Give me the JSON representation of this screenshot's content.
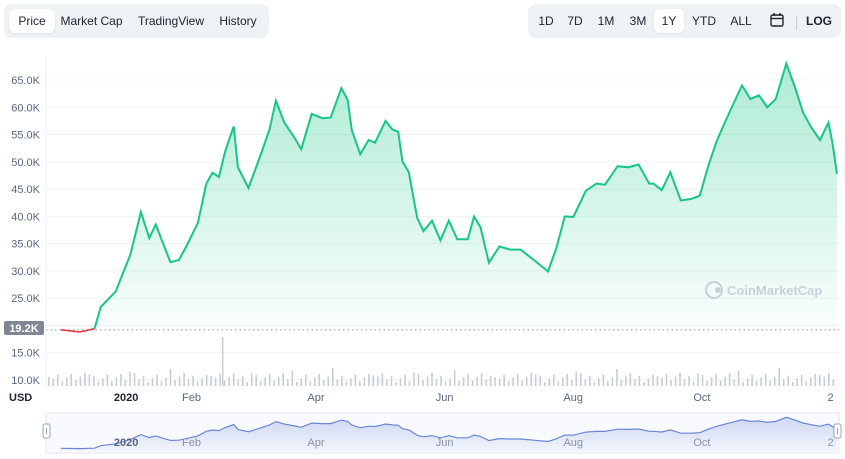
{
  "tabs": {
    "items": [
      {
        "label": "Price",
        "active": true
      },
      {
        "label": "Market Cap",
        "active": false
      },
      {
        "label": "TradingView",
        "active": false
      },
      {
        "label": "History",
        "active": false
      }
    ]
  },
  "ranges": {
    "items": [
      "1D",
      "7D",
      "1M",
      "3M",
      "1Y",
      "YTD",
      "ALL"
    ],
    "active": "1Y",
    "calendar_icon": "calendar-icon",
    "log_label": "LOG"
  },
  "colors": {
    "line": "#16c784",
    "line_down": "#ea3943",
    "fill_top": "#16c784",
    "grid": "#eff2f5",
    "volume": "#c8cdd3",
    "axis_text": "#58667e",
    "nav_line": "#6b86d9",
    "current_price_bg": "#7f8694"
  },
  "watermark": "CoinMarketCap",
  "currency_label": "USD",
  "current_price_label": "19.2K",
  "chart_data": {
    "type": "area",
    "y_ticks": [
      "10.0K",
      "15.0K",
      "20.0K",
      "25.0K",
      "30.0K",
      "35.0K",
      "40.0K",
      "45.0K",
      "50.0K",
      "55.0K",
      "60.0K",
      "65.0K"
    ],
    "x_ticks": [
      "2020",
      "Feb",
      "Apr",
      "Jun",
      "Aug",
      "Oct",
      "2"
    ],
    "ylim": [
      10000,
      68000
    ],
    "baseline": 19200,
    "x": [
      "2020-12-01",
      "2020-12-10",
      "2020-12-17",
      "2020-12-20",
      "2020-12-27",
      "2021-01-03",
      "2021-01-08",
      "2021-01-12",
      "2021-01-15",
      "2021-01-22",
      "2021-01-26",
      "2021-01-29",
      "2021-02-04",
      "2021-02-08",
      "2021-02-11",
      "2021-02-14",
      "2021-02-17",
      "2021-02-21",
      "2021-02-23",
      "2021-02-28",
      "2021-03-06",
      "2021-03-10",
      "2021-03-13",
      "2021-03-17",
      "2021-03-22",
      "2021-03-25",
      "2021-03-30",
      "2021-04-04",
      "2021-04-08",
      "2021-04-13",
      "2021-04-16",
      "2021-04-18",
      "2021-04-22",
      "2021-04-26",
      "2021-04-29",
      "2021-05-04",
      "2021-05-07",
      "2021-05-10",
      "2021-05-12",
      "2021-05-15",
      "2021-05-19",
      "2021-05-22",
      "2021-05-26",
      "2021-05-30",
      "2021-06-03",
      "2021-06-07",
      "2021-06-12",
      "2021-06-15",
      "2021-06-18",
      "2021-06-22",
      "2021-06-27",
      "2021-07-02",
      "2021-07-07",
      "2021-07-14",
      "2021-07-20",
      "2021-07-24",
      "2021-07-28",
      "2021-08-01",
      "2021-08-07",
      "2021-08-12",
      "2021-08-16",
      "2021-08-22",
      "2021-08-27",
      "2021-09-01",
      "2021-09-06",
      "2021-09-08",
      "2021-09-12",
      "2021-09-16",
      "2021-09-21",
      "2021-09-26",
      "2021-09-30",
      "2021-10-04",
      "2021-10-08",
      "2021-10-12",
      "2021-10-16",
      "2021-10-20",
      "2021-10-24",
      "2021-10-28",
      "2021-11-01",
      "2021-11-05",
      "2021-11-10",
      "2021-11-14",
      "2021-11-18",
      "2021-11-22",
      "2021-11-26",
      "2021-11-30",
      "2021-12-02",
      "2021-12-04"
    ],
    "series": [
      {
        "values": [
          19200,
          18800,
          19400,
          23400,
          26200,
          33000,
          40800,
          36000,
          38500,
          31600,
          32000,
          34100,
          38800,
          46000,
          48000,
          47200,
          52000,
          56500,
          49000,
          45200,
          51500,
          56000,
          61200,
          57200,
          54300,
          52300,
          58800,
          58000,
          58100,
          63500,
          61400,
          55800,
          51400,
          54000,
          53500,
          57500,
          56000,
          55500,
          50100,
          48100,
          39700,
          37300,
          39200,
          35600,
          39200,
          35800,
          35800,
          40000,
          38000,
          31500,
          34500,
          33900,
          33900,
          31800,
          29900,
          34200,
          40000,
          39900,
          44700,
          46000,
          45800,
          49200,
          49000,
          49500,
          46000,
          46000,
          44800,
          48100,
          42900,
          43200,
          43800,
          49200,
          53800,
          57300,
          60700,
          64000,
          61500,
          62200,
          60000,
          61500,
          68000,
          63800,
          59000,
          56200,
          54000,
          57200,
          53200,
          47800
        ]
      }
    ]
  }
}
